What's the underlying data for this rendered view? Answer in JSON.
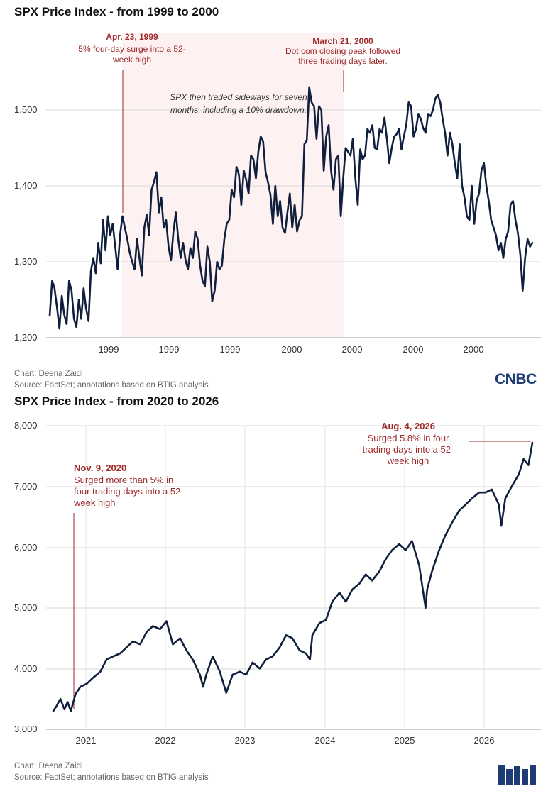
{
  "chart_data": [
    {
      "type": "line",
      "title": "SPX Price Index - from 1999 to 2000",
      "xlabel": "",
      "ylabel": "",
      "x_tick_labels": [
        "1999",
        "1999",
        "1999",
        "2000",
        "2000",
        "2000",
        "2000"
      ],
      "y_tick_labels": [
        "1,200",
        "1,300",
        "1,400",
        "1,500"
      ],
      "ylim": [
        1200,
        1560
      ],
      "grid": "horizontal",
      "shaded_region": {
        "from": "1999-04-23",
        "to": "2000-03-21"
      },
      "annotations": [
        {
          "date": "Apr. 23, 1999",
          "text": "5% four-day surge into a 52-week high"
        },
        {
          "date": "March 21, 2000",
          "text": "Dot com closing peak followed three trading days later."
        },
        {
          "date": "",
          "text": "SPX then traded sideways for seven months, including a 10% drawdown."
        }
      ],
      "credit": {
        "author": "Chart: Deena Zaidi",
        "source": "Source: FactSet; annotations based on BTIG analysis"
      },
      "series": [
        {
          "values": [
            1229,
            1275,
            1265,
            1240,
            1212,
            1255,
            1230,
            1218,
            1275,
            1262,
            1225,
            1214,
            1250,
            1225,
            1265,
            1238,
            1222,
            1288,
            1305,
            1285,
            1325,
            1298,
            1355,
            1315,
            1360,
            1335,
            1350,
            1320,
            1290,
            1335,
            1360,
            1345,
            1330,
            1312,
            1300,
            1290,
            1330,
            1305,
            1282,
            1345,
            1362,
            1335,
            1395,
            1405,
            1418,
            1365,
            1385,
            1345,
            1355,
            1320,
            1302,
            1340,
            1365,
            1330,
            1305,
            1325,
            1302,
            1290,
            1318,
            1305,
            1340,
            1330,
            1295,
            1275,
            1268,
            1320,
            1300,
            1248,
            1262,
            1300,
            1290,
            1295,
            1330,
            1350,
            1355,
            1395,
            1385,
            1425,
            1415,
            1375,
            1420,
            1408,
            1390,
            1440,
            1435,
            1410,
            1445,
            1465,
            1458,
            1418,
            1405,
            1388,
            1350,
            1400,
            1360,
            1380,
            1345,
            1338,
            1365,
            1390,
            1345,
            1375,
            1340,
            1355,
            1360,
            1455,
            1460,
            1530,
            1510,
            1505,
            1462,
            1505,
            1500,
            1420,
            1465,
            1480,
            1420,
            1395,
            1435,
            1440,
            1360,
            1410,
            1450,
            1445,
            1440,
            1462,
            1410,
            1375,
            1448,
            1435,
            1440,
            1475,
            1470,
            1480,
            1450,
            1448,
            1475,
            1470,
            1490,
            1462,
            1430,
            1450,
            1465,
            1468,
            1475,
            1448,
            1465,
            1480,
            1510,
            1505,
            1465,
            1475,
            1495,
            1488,
            1476,
            1470,
            1495,
            1492,
            1500,
            1515,
            1520,
            1510,
            1488,
            1470,
            1440,
            1470,
            1455,
            1430,
            1410,
            1455,
            1400,
            1385,
            1360,
            1355,
            1400,
            1350,
            1380,
            1390,
            1420,
            1430,
            1400,
            1380,
            1355,
            1345,
            1335,
            1315,
            1325,
            1305,
            1330,
            1340,
            1375,
            1380,
            1355,
            1338,
            1310,
            1262,
            1305,
            1330,
            1320,
            1325
          ]
        }
      ]
    },
    {
      "type": "line",
      "title": "SPX Price Index - from 2020 to 2026",
      "xlabel": "",
      "ylabel": "",
      "x_tick_labels": [
        "2021",
        "2022",
        "2023",
        "2024",
        "2025",
        "2026"
      ],
      "y_tick_labels": [
        "3,000",
        "4,000",
        "5,000",
        "6,000",
        "7,000",
        "8,000"
      ],
      "ylim": [
        3000,
        8000
      ],
      "grid": "both",
      "annotations": [
        {
          "date": "Nov. 9, 2020",
          "text": "Surged more than 5% in four trading days into a 52-week high"
        },
        {
          "date": "Aug. 4, 2026",
          "text": "Surged 5.8% in four trading days into a 52-week high"
        }
      ],
      "credit": {
        "author": "Chart: Deena Zaidi",
        "source": "Source: FactSet; annotations based on BTIG analysis"
      },
      "series": [
        {
          "x": [
            2020.58,
            2020.62,
            2020.67,
            2020.72,
            2020.76,
            2020.8,
            2020.86,
            2020.92,
            2021.0,
            2021.08,
            2021.17,
            2021.25,
            2021.33,
            2021.42,
            2021.5,
            2021.58,
            2021.67,
            2021.75,
            2021.83,
            2021.92,
            2022.0,
            2022.08,
            2022.17,
            2022.25,
            2022.33,
            2022.42,
            2022.46,
            2022.5,
            2022.58,
            2022.67,
            2022.75,
            2022.79,
            2022.83,
            2022.92,
            2023.0,
            2023.08,
            2023.17,
            2023.25,
            2023.33,
            2023.42,
            2023.5,
            2023.58,
            2023.67,
            2023.75,
            2023.8,
            2023.83,
            2023.92,
            2024.0,
            2024.08,
            2024.17,
            2024.25,
            2024.33,
            2024.42,
            2024.5,
            2024.58,
            2024.67,
            2024.75,
            2024.83,
            2024.92,
            2025.0,
            2025.08,
            2025.17,
            2025.25,
            2025.27,
            2025.33,
            2025.42,
            2025.5,
            2025.58,
            2025.67,
            2025.75,
            2025.83,
            2025.92,
            2026.0,
            2026.08,
            2026.17,
            2026.2,
            2026.25,
            2026.33,
            2026.42,
            2026.48,
            2026.54,
            2026.59
          ],
          "values": [
            3300,
            3380,
            3500,
            3330,
            3450,
            3300,
            3580,
            3700,
            3750,
            3850,
            3950,
            4150,
            4200,
            4250,
            4350,
            4450,
            4400,
            4600,
            4700,
            4650,
            4780,
            4400,
            4500,
            4300,
            4150,
            3900,
            3700,
            3900,
            4200,
            3950,
            3600,
            3750,
            3900,
            3950,
            3900,
            4100,
            4000,
            4150,
            4200,
            4350,
            4550,
            4500,
            4300,
            4250,
            4150,
            4550,
            4750,
            4800,
            5100,
            5250,
            5100,
            5300,
            5400,
            5550,
            5450,
            5600,
            5800,
            5950,
            6050,
            5950,
            6100,
            5700,
            5000,
            5300,
            5600,
            5950,
            6200,
            6400,
            6600,
            6700,
            6800,
            6900,
            6900,
            6950,
            6700,
            6350,
            6800,
            7000,
            7200,
            7450,
            7350,
            7720
          ]
        }
      ]
    }
  ],
  "logo": {
    "text": "CNBC"
  }
}
